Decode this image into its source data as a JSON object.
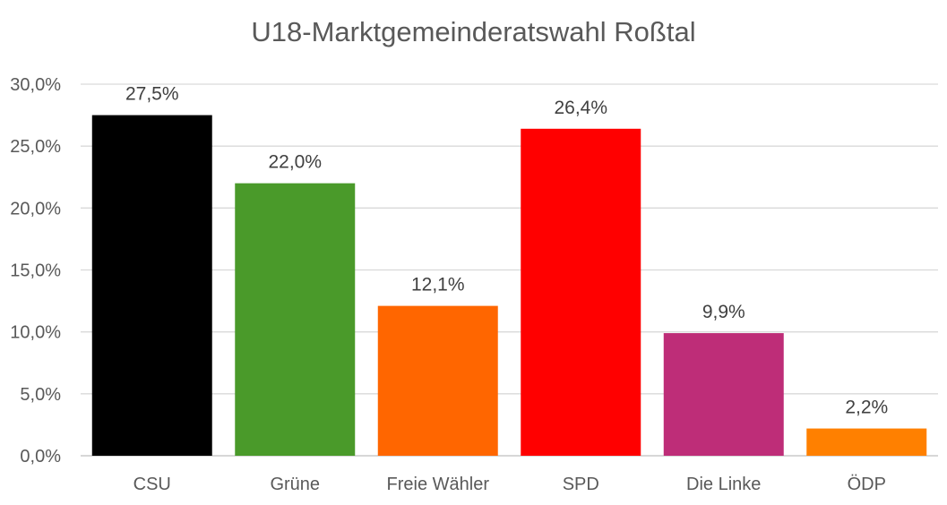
{
  "chart_data": {
    "type": "bar",
    "title": "U18-Marktgemeinderatswahl Roßtal",
    "categories": [
      "CSU",
      "Grüne",
      "Freie Wähler",
      "SPD",
      "Die Linke",
      "ÖDP"
    ],
    "values": [
      27.5,
      22.0,
      12.1,
      26.4,
      9.9,
      2.2
    ],
    "data_labels": [
      "27,5%",
      "22,0%",
      "12,1%",
      "26,4%",
      "9,9%",
      "2,2%"
    ],
    "bar_colors": [
      "#000000",
      "#4a9a2a",
      "#ff6600",
      "#ff0000",
      "#be2d78",
      "#ff8000"
    ],
    "ylim": [
      0,
      30
    ],
    "y_ticks": [
      0,
      5,
      10,
      15,
      20,
      25,
      30
    ],
    "y_tick_labels": [
      "0,0%",
      "5,0%",
      "10,0%",
      "15,0%",
      "20,0%",
      "25,0%",
      "30,0%"
    ],
    "xlabel": "",
    "ylabel": "",
    "grid": true,
    "legend": "none"
  }
}
